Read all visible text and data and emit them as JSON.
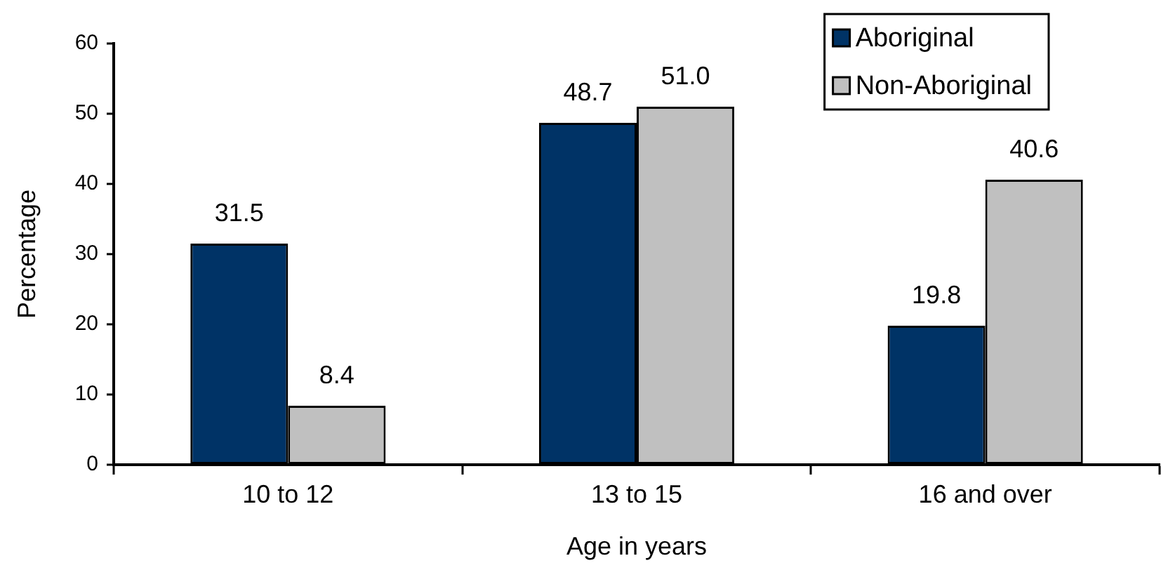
{
  "chart_data": {
    "type": "bar",
    "xlabel": "Age in years",
    "ylabel": "Percentage",
    "categories": [
      "10 to 12",
      "13 to 15",
      "16 and over"
    ],
    "series": [
      {
        "name": "Aboriginal",
        "color": "#003366",
        "values": [
          31.5,
          48.7,
          19.8
        ],
        "value_labels": [
          "31.5",
          "48.7",
          "19.8"
        ]
      },
      {
        "name": "Non-Aboriginal",
        "color": "#c0c0c0",
        "values": [
          8.4,
          51.0,
          40.6
        ],
        "value_labels": [
          "8.4",
          "51.0",
          "40.6"
        ]
      }
    ],
    "ylim": [
      0,
      60
    ],
    "yticks": [
      0,
      10,
      20,
      30,
      40,
      50,
      60
    ],
    "grid": false,
    "legend": "top right"
  }
}
